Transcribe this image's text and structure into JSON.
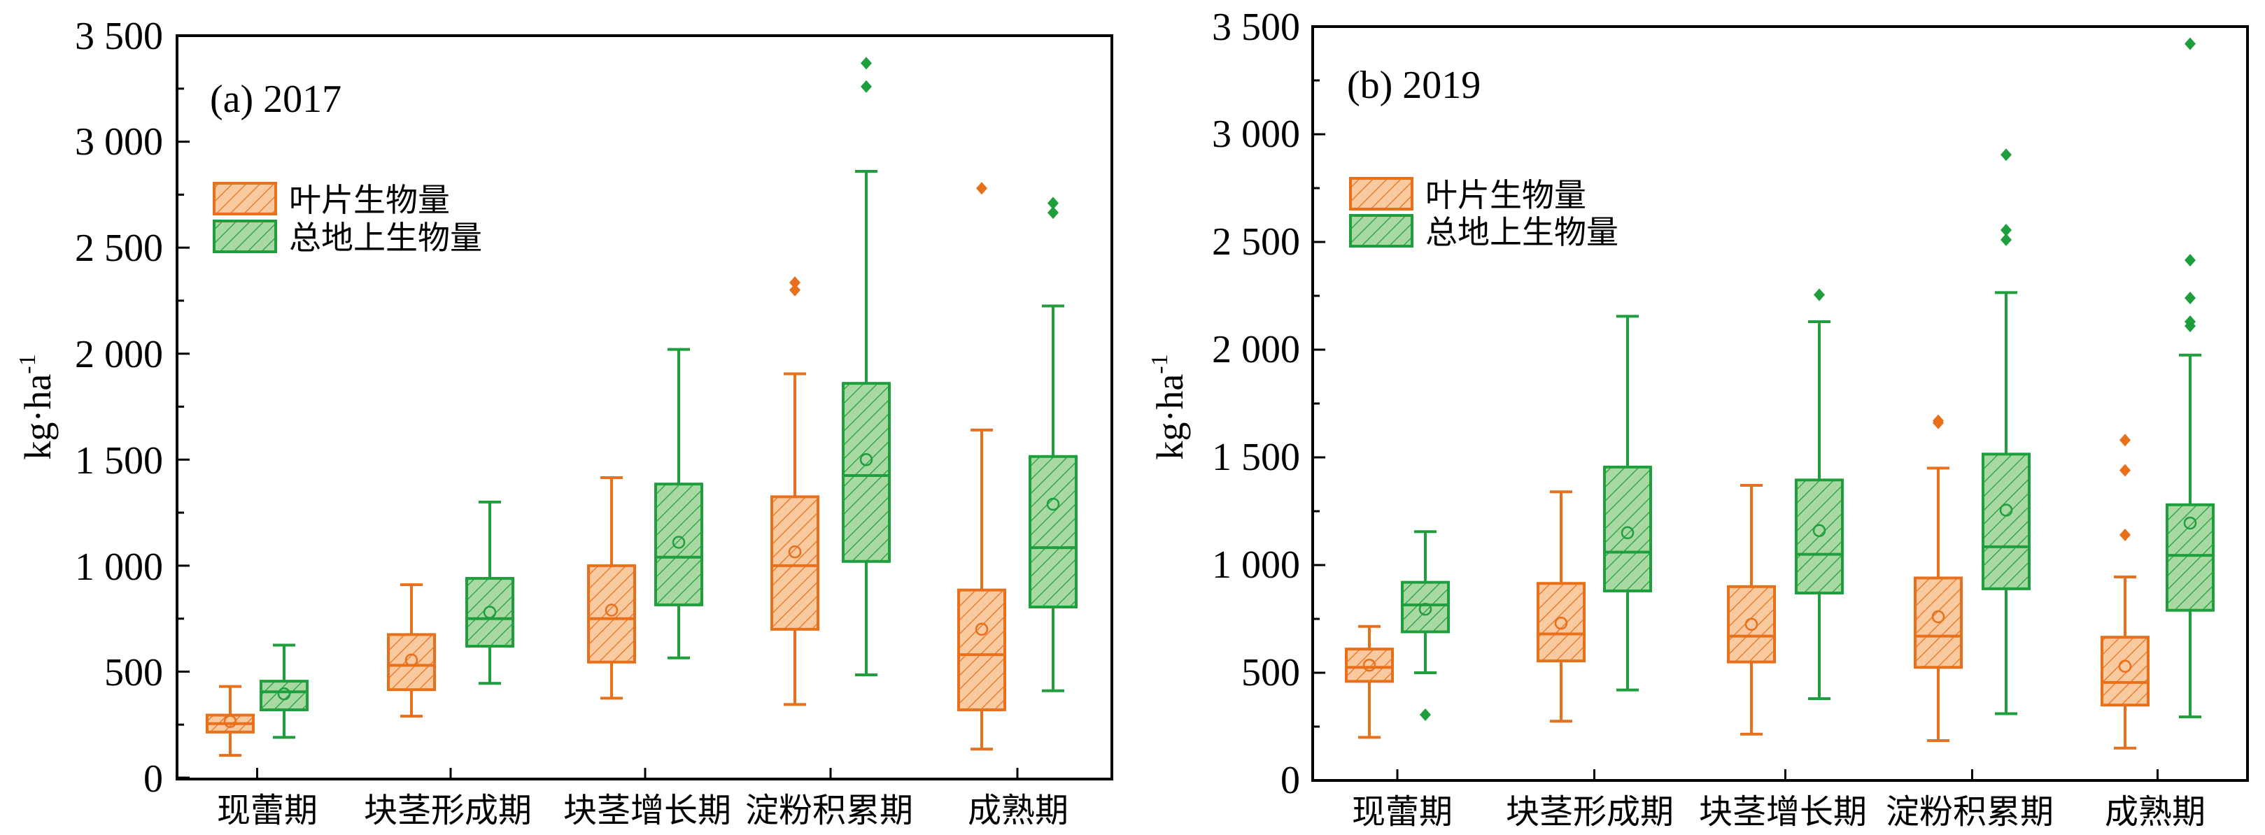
{
  "chart_data": [
    {
      "type": "box",
      "panel_label": "(a) 2017",
      "ylabel": "kg·ha",
      "ylabel_sup": "-1",
      "ylim": [
        0,
        3500
      ],
      "yticks": [
        0,
        500,
        1000,
        1500,
        2000,
        2500,
        3000,
        3500
      ],
      "ytick_labels": [
        "0",
        "500",
        "1 000",
        "1 500",
        "2 000",
        "2 500",
        "3 000",
        "3 500"
      ],
      "categories": [
        "现蕾期",
        "块茎形成期",
        "块茎增长期",
        "淀粉积累期",
        "成熟期"
      ],
      "legend_position": "upper-left",
      "series": [
        {
          "name": "叶片生物量",
          "color": "#E8701A",
          "fill": "#F9C9A0",
          "boxes": [
            {
              "min": 105,
              "q1": 215,
              "median": 255,
              "q3": 295,
              "max": 430,
              "mean": 265,
              "outliers": []
            },
            {
              "min": 290,
              "q1": 415,
              "median": 530,
              "q3": 675,
              "max": 910,
              "mean": 555,
              "outliers": []
            },
            {
              "min": 375,
              "q1": 545,
              "median": 750,
              "q3": 1000,
              "max": 1415,
              "mean": 790,
              "outliers": []
            },
            {
              "min": 345,
              "q1": 700,
              "median": 1000,
              "q3": 1325,
              "max": 1905,
              "mean": 1065,
              "outliers": [
                2300,
                2335
              ]
            },
            {
              "min": 135,
              "q1": 320,
              "median": 580,
              "q3": 885,
              "max": 1640,
              "mean": 700,
              "outliers": [
                2780
              ]
            }
          ]
        },
        {
          "name": "总地上生物量",
          "color": "#1E9E3C",
          "fill": "#A9D9A2",
          "boxes": [
            {
              "min": 190,
              "q1": 320,
              "median": 405,
              "q3": 455,
              "max": 625,
              "mean": 395,
              "outliers": []
            },
            {
              "min": 445,
              "q1": 620,
              "median": 750,
              "q3": 940,
              "max": 1300,
              "mean": 780,
              "outliers": []
            },
            {
              "min": 565,
              "q1": 815,
              "median": 1040,
              "q3": 1385,
              "max": 2020,
              "mean": 1110,
              "outliers": []
            },
            {
              "min": 485,
              "q1": 1020,
              "median": 1425,
              "q3": 1860,
              "max": 2860,
              "mean": 1500,
              "outliers": [
                3260,
                3370
              ]
            },
            {
              "min": 410,
              "q1": 805,
              "median": 1085,
              "q3": 1515,
              "max": 2225,
              "mean": 1290,
              "outliers": [
                2665,
                2710
              ]
            }
          ]
        }
      ]
    },
    {
      "type": "box",
      "panel_label": "(b) 2019",
      "ylabel": "kg·ha",
      "ylabel_sup": "-1",
      "ylim": [
        0,
        3500
      ],
      "yticks": [
        0,
        500,
        1000,
        1500,
        2000,
        2500,
        3000,
        3500
      ],
      "ytick_labels": [
        "0",
        "500",
        "1 000",
        "1 500",
        "2 000",
        "2 500",
        "3 000",
        "3 500"
      ],
      "categories": [
        "现蕾期",
        "块茎形成期",
        "块茎增长期",
        "淀粉积累期",
        "成熟期"
      ],
      "legend_position": "upper-left",
      "series": [
        {
          "name": "叶片生物量",
          "color": "#E8701A",
          "fill": "#F9C9A0",
          "boxes": [
            {
              "min": 200,
              "q1": 460,
              "median": 525,
              "q3": 610,
              "max": 715,
              "mean": 535,
              "outliers": []
            },
            {
              "min": 275,
              "q1": 555,
              "median": 680,
              "q3": 915,
              "max": 1340,
              "mean": 730,
              "outliers": []
            },
            {
              "min": 215,
              "q1": 550,
              "median": 670,
              "q3": 900,
              "max": 1370,
              "mean": 725,
              "outliers": []
            },
            {
              "min": 185,
              "q1": 525,
              "median": 670,
              "q3": 940,
              "max": 1450,
              "mean": 760,
              "outliers": [
                1660,
                1670
              ]
            },
            {
              "min": 150,
              "q1": 350,
              "median": 455,
              "q3": 665,
              "max": 945,
              "mean": 530,
              "outliers": [
                1140,
                1440,
                1580
              ]
            }
          ]
        },
        {
          "name": "总地上生物量",
          "color": "#1E9E3C",
          "fill": "#A9D9A2",
          "boxes": [
            {
              "min": 500,
              "q1": 690,
              "median": 815,
              "q3": 920,
              "max": 1155,
              "mean": 795,
              "outliers": [
                305
              ]
            },
            {
              "min": 420,
              "q1": 880,
              "median": 1060,
              "q3": 1455,
              "max": 2155,
              "mean": 1150,
              "outliers": []
            },
            {
              "min": 380,
              "q1": 870,
              "median": 1050,
              "q3": 1395,
              "max": 2130,
              "mean": 1160,
              "outliers": [
                2255
              ]
            },
            {
              "min": 310,
              "q1": 890,
              "median": 1085,
              "q3": 1515,
              "max": 2265,
              "mean": 1255,
              "outliers": [
                2510,
                2555,
                2905
              ]
            },
            {
              "min": 295,
              "q1": 790,
              "median": 1045,
              "q3": 1280,
              "max": 1975,
              "mean": 1195,
              "outliers": [
                2110,
                2130,
                2240,
                2415,
                3420
              ]
            }
          ]
        }
      ]
    }
  ]
}
